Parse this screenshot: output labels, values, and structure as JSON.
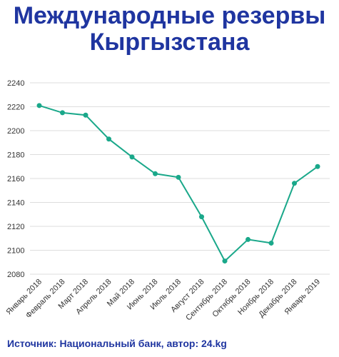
{
  "title_line1": "Международные резервы",
  "title_line2": "Кыргызстана",
  "source": "Источник: Национальный банк, автор: 24.kg",
  "colors": {
    "line": "#1aa88a",
    "title": "#1f35a0",
    "grid": "#dddddd",
    "axis_text": "#333333"
  },
  "chart_data": {
    "type": "line",
    "title": "Международные резервы Кыргызстана",
    "xlabel": "",
    "ylabel": "",
    "categories": [
      "Январь 2018",
      "Февраль 2018",
      "Март 2018",
      "Апрель 2018",
      "Май 2018",
      "Июнь 2018",
      "Июль 2018",
      "Август 2018",
      "Сентябрь 2018",
      "Октябрь 2018",
      "Ноябрь 2018",
      "Декабрь 2018",
      "Январь 2019"
    ],
    "series": [
      {
        "values": [
          2221,
          2215,
          2213,
          2193,
          2178,
          2164,
          2161,
          2128,
          2091,
          2109,
          2106,
          2156,
          2170
        ]
      }
    ],
    "y_ticks": [
      2080,
      2100,
      2120,
      2140,
      2160,
      2180,
      2200,
      2220,
      2240
    ],
    "ylim": [
      2080,
      2240
    ],
    "grid": true,
    "legend": "none"
  }
}
